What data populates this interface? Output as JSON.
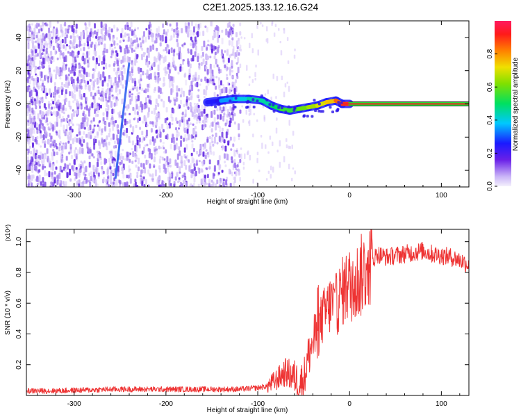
{
  "title": "C2E1.2025.133.12.16.G24",
  "colors": {
    "snr_line": "#ee3333",
    "track": "#2255ee",
    "residual": "#2a14e8",
    "scatter_light": "#d8c8f8",
    "scatter_mid": "#9a6ff0",
    "scatter_dark": "#5b1fe0"
  },
  "chart_data": [
    {
      "type": "heatmap",
      "title": "C2E1.2025.133.12.16.G24",
      "xlabel": "Height of straight line (km)",
      "ylabel": "Frequency (Hz)",
      "xlim": [
        -352,
        130
      ],
      "ylim": [
        -50,
        50
      ],
      "x_ticks": [
        -300,
        -200,
        -100,
        0,
        100
      ],
      "x_tick_labels": [
        "-300",
        "-200",
        "-100",
        "0",
        "100"
      ],
      "y_ticks": [
        -40,
        -20,
        0,
        20,
        40
      ],
      "y_tick_labels": [
        "-40",
        "-20",
        "0",
        "20",
        "40"
      ],
      "colorbar": {
        "label": "Normalized spectral amplitude",
        "range": [
          0,
          1
        ],
        "ticks": [
          0.0,
          0.2,
          0.4,
          0.6,
          0.8
        ],
        "tick_labels": [
          "0.0",
          "0.2",
          "0.4",
          "0.6",
          "0.8"
        ],
        "colormap": "rainbow"
      },
      "dominant_line": {
        "description": "Peak frequency track",
        "x": [
          -155,
          -140,
          -125,
          -110,
          -95,
          -85,
          -75,
          -65,
          -55,
          -45,
          -35,
          -25,
          -15,
          -8,
          0,
          50,
          100,
          130
        ],
        "y": [
          1,
          2,
          3,
          3,
          2,
          -1,
          -3,
          -4,
          -3,
          -2,
          -1,
          1,
          2,
          0,
          0,
          0,
          0,
          0
        ],
        "amplitude": [
          0.25,
          0.35,
          0.4,
          0.45,
          0.45,
          0.5,
          0.55,
          0.55,
          0.6,
          0.65,
          0.7,
          0.75,
          0.85,
          0.9,
          0.95,
          0.97,
          1.0,
          1.0
        ]
      },
      "secondary_track": {
        "x": [
          -240,
          -255
        ],
        "y": [
          25,
          -45
        ],
        "amplitude": 0.15
      },
      "grid": false
    },
    {
      "type": "line",
      "xlabel": "Height of straight line (km)",
      "ylabel": "SNR (10 * v/v)",
      "y_multiplier": "(x10⁴)",
      "xlim": [
        -352,
        130
      ],
      "ylim": [
        0,
        1.08
      ],
      "x_ticks": [
        -300,
        -200,
        -100,
        0,
        100
      ],
      "x_tick_labels": [
        "-300",
        "-200",
        "-100",
        "0",
        "100"
      ],
      "y_ticks": [
        0.2,
        0.4,
        0.6,
        0.8,
        1.0
      ],
      "y_tick_labels": [
        "0.2",
        "0.4",
        "0.6",
        "0.8",
        "1.0"
      ],
      "series": [
        {
          "x": [
            -352,
            -320,
            -290,
            -260,
            -230,
            -200,
            -170,
            -140,
            -120,
            -100,
            -90,
            -80,
            -70,
            -60,
            -55,
            -50,
            -45,
            -40,
            -35,
            -30,
            -25,
            -20,
            -15,
            -10,
            -5,
            0,
            5,
            10,
            15,
            20,
            25,
            30,
            40,
            50,
            60,
            70,
            80,
            90,
            100,
            110,
            120,
            130
          ],
          "y": [
            0.03,
            0.03,
            0.035,
            0.04,
            0.04,
            0.04,
            0.04,
            0.04,
            0.04,
            0.05,
            0.06,
            0.1,
            0.15,
            0.12,
            0.08,
            0.1,
            0.25,
            0.35,
            0.4,
            0.5,
            0.55,
            0.6,
            0.58,
            0.65,
            0.7,
            0.72,
            0.72,
            0.75,
            0.8,
            0.85,
            0.88,
            0.92,
            0.9,
            0.91,
            0.92,
            0.93,
            0.94,
            0.92,
            0.91,
            0.9,
            0.88,
            0.85
          ]
        }
      ],
      "grid": false
    }
  ]
}
